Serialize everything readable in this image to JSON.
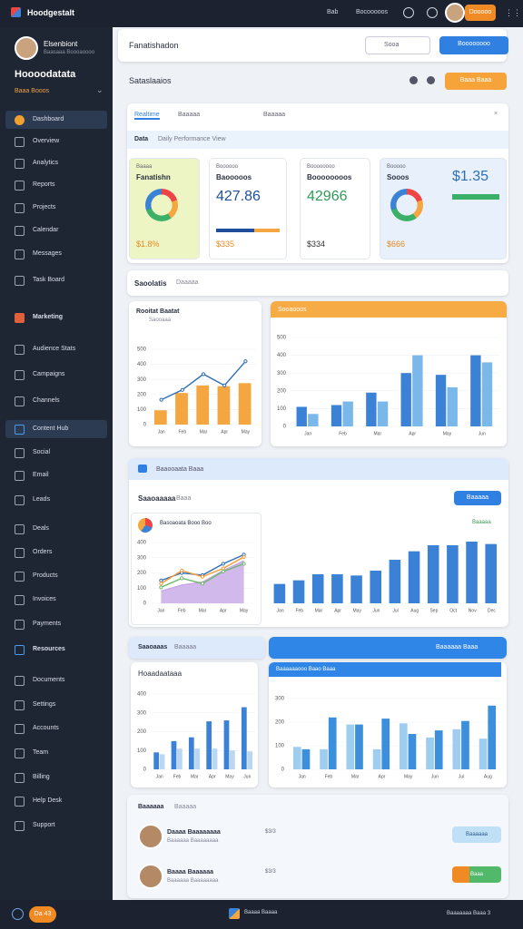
{
  "topbar": {
    "brand": "Hoodgestalt",
    "links": [
      "Bab",
      "Bocooooos"
    ],
    "user": "Dooooo"
  },
  "sidebar": {
    "profile_name": "Elsenbiont",
    "profile_sub": "Baasaaa Boooaoooo",
    "title": "Hoooodatata",
    "subtitle": "Baaa Booos",
    "menu": [
      "Dashboard",
      "Overview",
      "Analytics",
      "Reports",
      "Projects",
      "Calendar",
      "Messages",
      "Task Board",
      "Marketing",
      "Audience Stats",
      "Campaigns",
      "Channels",
      "Content Hub",
      "Social",
      "Email",
      "Leads",
      "Deals",
      "Orders",
      "Products",
      "Invoices",
      "Payments",
      "Resources",
      "Documents",
      "Settings",
      "Accounts",
      "Team",
      "Billing",
      "Help Desk",
      "Support"
    ]
  },
  "header": {
    "title": "Fanatishadon",
    "search": "Sooa",
    "button": "Boooooooo"
  },
  "section": {
    "title": "Sataslaaios",
    "button": "Baaa Baaa"
  },
  "overview": {
    "tabs": [
      "Realtime",
      "Baaaaa",
      "Baaaaa"
    ],
    "row_title": "Data",
    "row_text": "Daily Performance View",
    "kpis": [
      {
        "label": "Baaaa",
        "title": "Fanatishn",
        "value": "",
        "foot": "$1.8%"
      },
      {
        "label": "Boooooo",
        "title": "Baooooos",
        "value": "427.86",
        "foot": "$335"
      },
      {
        "label": "Boooooooo",
        "title": "Boooooooos",
        "value": "42966",
        "foot": "$334"
      },
      {
        "label": "Booooo",
        "title": "Sooos",
        "value": "$1.35",
        "foot": "$666"
      }
    ]
  },
  "analytics": {
    "title": "Saoolatis",
    "subtitle": "Daaaaa"
  },
  "panel3": {
    "header": "Baaooaata Baaa",
    "title": "Saaoaaaaa",
    "filter": "Baaa",
    "button": "Baaaaa",
    "note": "Baaaaa"
  },
  "panel4": {
    "header": "Saaoaaas",
    "subtitle": "Baaaaa",
    "right_header": "Baaaaaa Baaa"
  },
  "people": {
    "title": "Baaaaaa",
    "subtitle": "Baaaaa",
    "rows": [
      {
        "name": "Daaaa Baaaaaaaa",
        "sub": "Baaaaaa Baaaaaaaa",
        "value": "$3/3",
        "button": "Baaaaaa"
      },
      {
        "name": "Baaaa Baaaaaa",
        "sub": "Baaaaaa Baaaaaaaa",
        "value": "$3/3",
        "button": "Baaa"
      }
    ]
  },
  "footer": {
    "badge": "Da 43",
    "center": "Baaaa Baaaa",
    "right": "Baaaaaaa Baaa 3"
  },
  "chart_data": [
    {
      "type": "bar",
      "title": "Rooitat Baatat",
      "subtitle": "Saooaaa",
      "categories": [
        "Jan",
        "Feb",
        "Mar",
        "Apr",
        "May"
      ],
      "ylim": [
        0,
        500
      ],
      "yticks": [
        0,
        100,
        200,
        300,
        400,
        500
      ],
      "series": [
        {
          "color": "#f4a640",
          "values": [
            95,
            210,
            260,
            255,
            275
          ]
        },
        {
          "kind": "line",
          "color": "#2f6fb8",
          "values": [
            165,
            230,
            335,
            260,
            420
          ]
        }
      ]
    },
    {
      "type": "bar",
      "title": "Sooaooos",
      "categories": [
        "Jan",
        "Feb",
        "Mar",
        "Apr",
        "May",
        "Jun"
      ],
      "ylim": [
        0,
        500
      ],
      "yticks": [
        0,
        100,
        200,
        300,
        400,
        500
      ],
      "series": [
        {
          "color": "#3b82d6",
          "values": [
            110,
            120,
            190,
            300,
            290,
            400
          ]
        },
        {
          "color": "#7ab8ea",
          "values": [
            70,
            140,
            140,
            400,
            220,
            360
          ]
        }
      ]
    },
    {
      "type": "line",
      "title": "Basoaoata Booo Boo",
      "categories": [
        "Jan",
        "Feb",
        "Mar",
        "Apr",
        "May"
      ],
      "ylim": [
        0,
        400
      ],
      "yticks": [
        0,
        100,
        200,
        300,
        400
      ],
      "series": [
        {
          "kind": "area",
          "color": "#c7a7e6",
          "values": [
            80,
            120,
            140,
            215,
            280
          ]
        },
        {
          "kind": "line",
          "color": "#2f6fb8",
          "values": [
            150,
            200,
            185,
            260,
            320
          ]
        },
        {
          "kind": "line",
          "color": "#f29b38",
          "values": [
            130,
            215,
            175,
            230,
            305
          ]
        },
        {
          "kind": "line",
          "color": "#6bb86a",
          "values": [
            105,
            165,
            130,
            210,
            260
          ]
        }
      ]
    },
    {
      "type": "bar",
      "categories": [
        "Jan",
        "Feb",
        "Mar",
        "Apr",
        "May",
        "Jun",
        "Jul",
        "Aug",
        "Sep",
        "Oct",
        "Nov",
        "Dec"
      ],
      "ylim": [
        0,
        300
      ],
      "series": [
        {
          "color": "#3b82d6",
          "values": [
            80,
            95,
            120,
            120,
            115,
            135,
            180,
            215,
            240,
            240,
            255,
            245
          ]
        }
      ]
    },
    {
      "type": "bar",
      "title": "Hoaadaataaa",
      "categories": [
        "Jan",
        "Feb",
        "Mar",
        "Apr",
        "May",
        "Jun"
      ],
      "ylim": [
        0,
        400
      ],
      "yticks": [
        0,
        100,
        200,
        300,
        400
      ],
      "series": [
        {
          "color": "#3b82d6",
          "values": [
            90,
            150,
            170,
            255,
            260,
            330
          ]
        },
        {
          "color": "#b9d6f2",
          "values": [
            80,
            110,
            110,
            110,
            100,
            95
          ]
        }
      ]
    },
    {
      "type": "bar",
      "title": "Baaaaaaooo Baao Baaa",
      "categories": [
        "Jan",
        "Feb",
        "Mar",
        "Apr",
        "May",
        "Jun",
        "Jul",
        "Aug"
      ],
      "ylim": [
        0,
        300
      ],
      "yticks": [
        0,
        100,
        200,
        300
      ],
      "series": [
        {
          "color": "#9fcdf0",
          "values": [
            95,
            85,
            190,
            85,
            195,
            135,
            170,
            130
          ]
        },
        {
          "color": "#3b8fdc",
          "values": [
            85,
            220,
            190,
            215,
            150,
            165,
            205,
            270
          ]
        }
      ]
    }
  ]
}
